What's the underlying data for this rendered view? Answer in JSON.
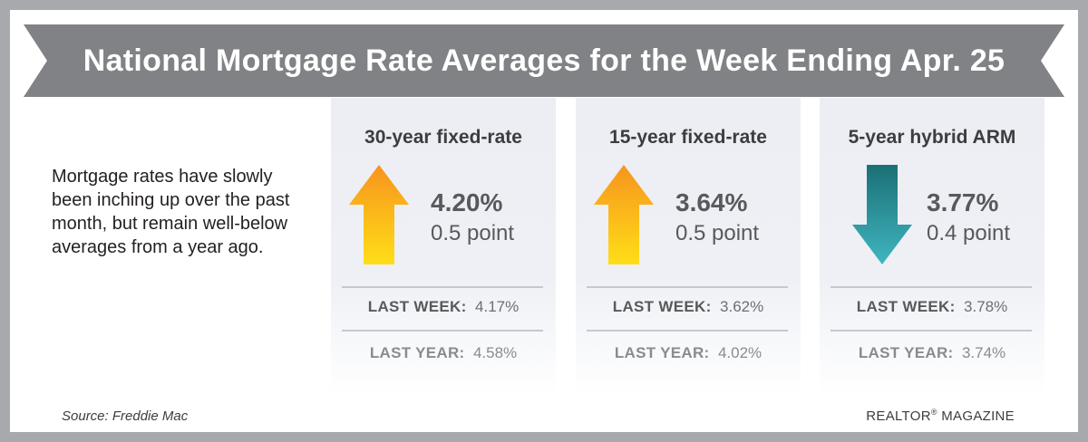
{
  "header": {
    "title": "National Mortgage Rate Averages for the Week Ending Apr. 25"
  },
  "intro": {
    "text": "Mortgage rates have slowly been inching up over the past month, but remain well-below averages from a year ago."
  },
  "cards": [
    {
      "title": "30-year fixed-rate",
      "direction": "up",
      "arrow_icon": "up-arrow-icon",
      "rate": "4.20%",
      "change": "0.5 point",
      "last_week_label": "LAST WEEK:",
      "last_week_value": "4.17%",
      "last_year_label": "LAST YEAR:",
      "last_year_value": "4.58%"
    },
    {
      "title": "15-year fixed-rate",
      "direction": "up",
      "arrow_icon": "up-arrow-icon",
      "rate": "3.64%",
      "change": "0.5 point",
      "last_week_label": "LAST WEEK:",
      "last_week_value": "3.62%",
      "last_year_label": "LAST YEAR:",
      "last_year_value": "4.02%"
    },
    {
      "title": "5-year hybrid ARM",
      "direction": "down",
      "arrow_icon": "down-arrow-icon",
      "rate": "3.77%",
      "change": "0.4 point",
      "last_week_label": "LAST WEEK:",
      "last_week_value": "3.78%",
      "last_year_label": "LAST YEAR:",
      "last_year_value": "3.74%"
    }
  ],
  "footer": {
    "source": "Source: Freddie Mac",
    "brand": "REALTOR",
    "brand_mark": "®",
    "brand_suffix": " MAGAZINE"
  },
  "colors": {
    "banner": "#808285",
    "frame": "#a7a9ac",
    "up_arrow_top": "#f7941d",
    "up_arrow_bottom": "#ffde17",
    "down_arrow_top": "#1b6f75",
    "down_arrow_bottom": "#3fb6c0"
  }
}
